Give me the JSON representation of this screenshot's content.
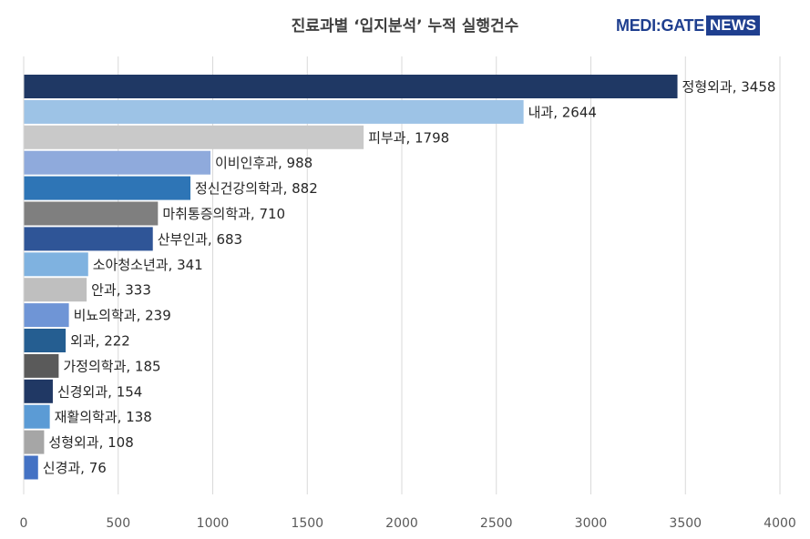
{
  "header": {
    "title": "진료과별 ‘입지분석’ 누적 실행건수",
    "logo_main": "MEDI:GATE",
    "logo_news": "NEWS"
  },
  "chart_data": {
    "type": "bar",
    "orientation": "horizontal",
    "title": "진료과별 ‘입지분석’ 누적 실행건수",
    "xlabel": "",
    "ylabel": "",
    "xlim": [
      0,
      4000
    ],
    "xticks": [
      "0",
      "500",
      "1000",
      "1500",
      "2000",
      "2500",
      "3000",
      "3500",
      "4000"
    ],
    "grid": "vertical",
    "categories": [
      "정형외과",
      "내과",
      "피부과",
      "이비인후과",
      "정신건강의학과",
      "마취통증의학과",
      "산부인과",
      "소아청소년과",
      "안과",
      "비뇨의학과",
      "외과",
      "가정의학과",
      "신경외과",
      "재활의학과",
      "성형외과",
      "신경과"
    ],
    "values": [
      3458,
      2644,
      1798,
      988,
      882,
      710,
      683,
      341,
      333,
      239,
      222,
      185,
      154,
      138,
      108,
      76
    ],
    "colors": [
      "#1f3864",
      "#9dc3e6",
      "#c9c9c9",
      "#8faadc",
      "#2e75b6",
      "#7f7f7f",
      "#2f5597",
      "#7fb2e0",
      "#bfbfbf",
      "#6f95d6",
      "#255e91",
      "#5a5a5a",
      "#203864",
      "#5b9bd5",
      "#a6a6a6",
      "#4472c4"
    ]
  }
}
